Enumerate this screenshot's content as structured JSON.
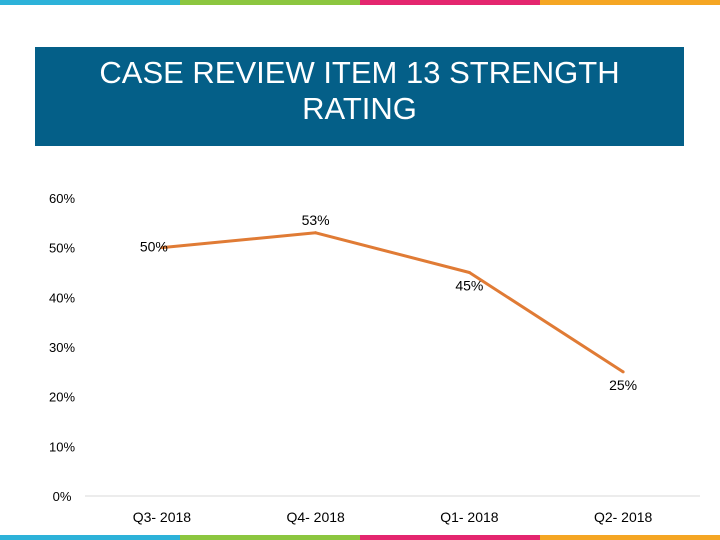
{
  "slide": {
    "title": "CASE REVIEW ITEM 13 STRENGTH RATING",
    "stripe_colors": [
      "#2db2d9",
      "#8cc63f",
      "#e4266f",
      "#f5a623"
    ]
  },
  "chart_data": {
    "type": "line",
    "title": "",
    "xlabel": "",
    "ylabel": "",
    "categories": [
      "Q3- 2018",
      "Q4- 2018",
      "Q1- 2018",
      "Q2- 2018"
    ],
    "series": [
      {
        "values": [
          0.5,
          0.53,
          0.45,
          0.25
        ],
        "color": "#e07b35"
      }
    ],
    "data_labels": [
      "50%",
      "53%",
      "45%",
      "25%"
    ],
    "ylim": [
      0,
      0.6
    ],
    "yticks": [
      "0%",
      "10%",
      "20%",
      "30%",
      "40%",
      "50%",
      "60%"
    ],
    "grid": false,
    "legend": "none"
  }
}
